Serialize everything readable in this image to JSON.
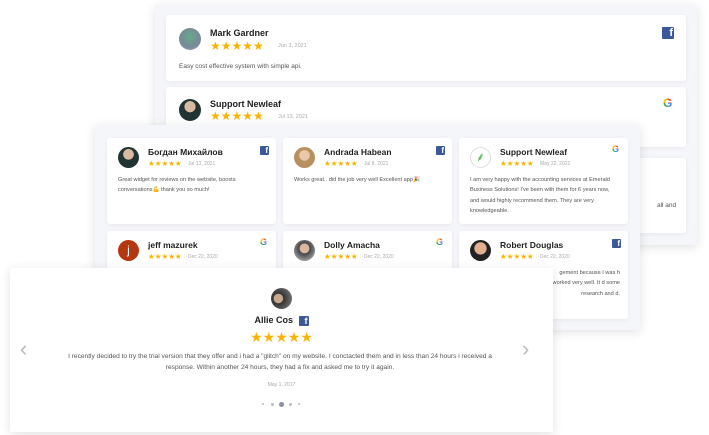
{
  "back_panel": {
    "cards": [
      {
        "name": "Mark Gardner",
        "stars": "★★★★★",
        "date": "Jun 3, 2021",
        "text": "Easy cost effective system with simple api.",
        "source": "facebook-icon"
      },
      {
        "name": "Support Newleaf",
        "stars": "★★★★★",
        "date": "Jul 13, 2021",
        "source": "google-icon"
      },
      {
        "text": "all and",
        "source": "google-icon"
      }
    ]
  },
  "grid_panel": {
    "cards": [
      {
        "name": "Богдан Михайлов",
        "stars": "★★★★★",
        "date": "Jul 13, 2021",
        "text": "Great widget for reviews on the website, boosts conversations💪 thank you so much!",
        "source": "facebook-icon"
      },
      {
        "name": "Andrada Habean",
        "stars": "★★★★★",
        "date": "Jul 8, 2021",
        "text": "Works great.. did the job very well Excellent app🎉",
        "source": "facebook-icon"
      },
      {
        "name": "Support Newleaf",
        "stars": "★★★★★",
        "date": "May 22, 2021",
        "text": "I am very happy with the accounting services at Emerald Business Solutions! I've been with them for 6 years now, and would highly recommend them. They are very knowledgeable.",
        "source": "google-icon"
      },
      {
        "name": "jeff mazurek",
        "initial": "j",
        "stars": "★★★★★",
        "date": "Dec 22, 2020",
        "source": "google-icon"
      },
      {
        "name": "Dolly Amacha",
        "stars": "★★★★★",
        "date": "Dec 22, 2020",
        "source": "google-icon"
      },
      {
        "name": "Robert Douglas",
        "stars": "★★★★★",
        "date": "Dec 22, 2020",
        "text": "gement because I was h worked very well. It d some research and d.",
        "source": "facebook-icon"
      }
    ]
  },
  "slider": {
    "name": "Allie Cos",
    "stars": "★★★★★",
    "text": "I recently decided to try the trial version that they offer and i had a \"glitch\" on my website. I conctacted them and in less than 24 hours i received a response. Within another 24 hours, they had a fix and asked me to try it again.",
    "date": "May 1, 2017",
    "prev": "‹",
    "next": "›",
    "active_dot": 3,
    "dot_count": 5
  },
  "colors": {
    "star": "#f7b500",
    "facebook": "#3b5998"
  }
}
